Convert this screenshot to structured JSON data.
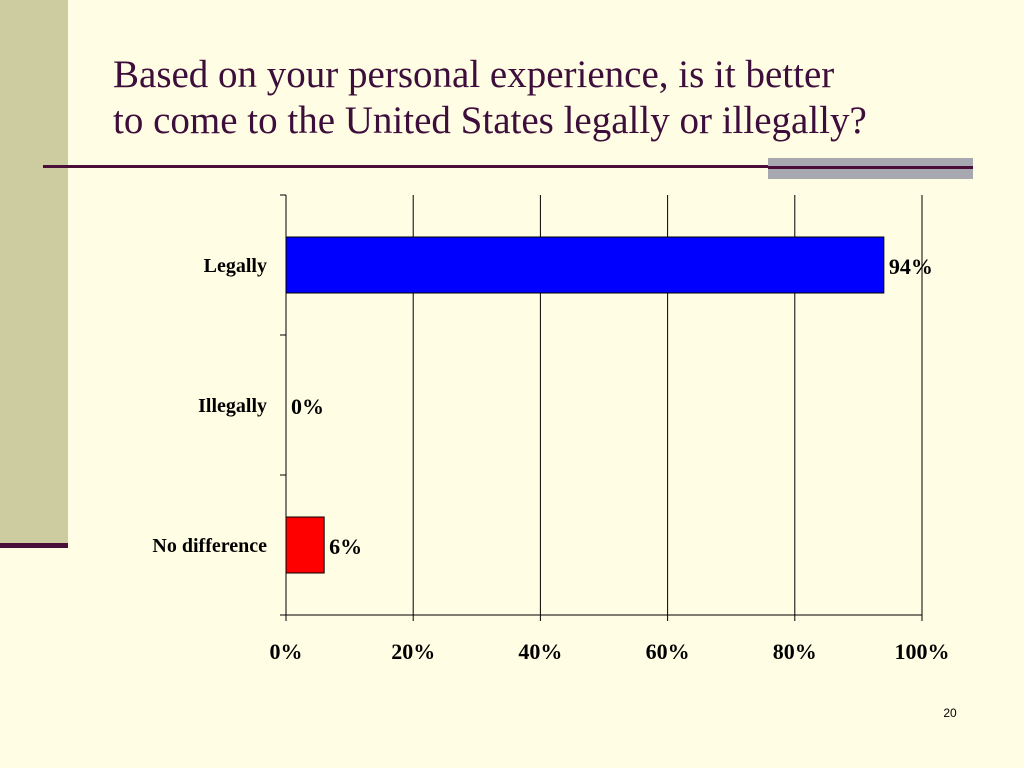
{
  "slide": {
    "title_line1": "Based on your personal experience, is it better",
    "title_line2": "to come to the United States legally or illegally?",
    "page_number": "20"
  },
  "colors": {
    "background": "#FFFDE3",
    "side_band": "#CDCBA0",
    "accent": "#4A0E3A",
    "title_text": "#3D0E3B"
  },
  "chart_data": {
    "type": "bar",
    "orientation": "horizontal",
    "categories": [
      "Legally",
      "Illegally",
      "No difference"
    ],
    "values": [
      94,
      0,
      6
    ],
    "value_labels": [
      "94%",
      "0%",
      "6%"
    ],
    "bar_colors": [
      "#0000FF",
      "#FFFF00",
      "#FF0000"
    ],
    "xlim": [
      0,
      100
    ],
    "x_ticks": [
      0,
      20,
      40,
      60,
      80,
      100
    ],
    "x_tick_labels": [
      "0%",
      "20%",
      "40%",
      "60%",
      "80%",
      "100%"
    ],
    "grid": "vertical",
    "legend": "none",
    "xlabel": "",
    "ylabel": ""
  }
}
